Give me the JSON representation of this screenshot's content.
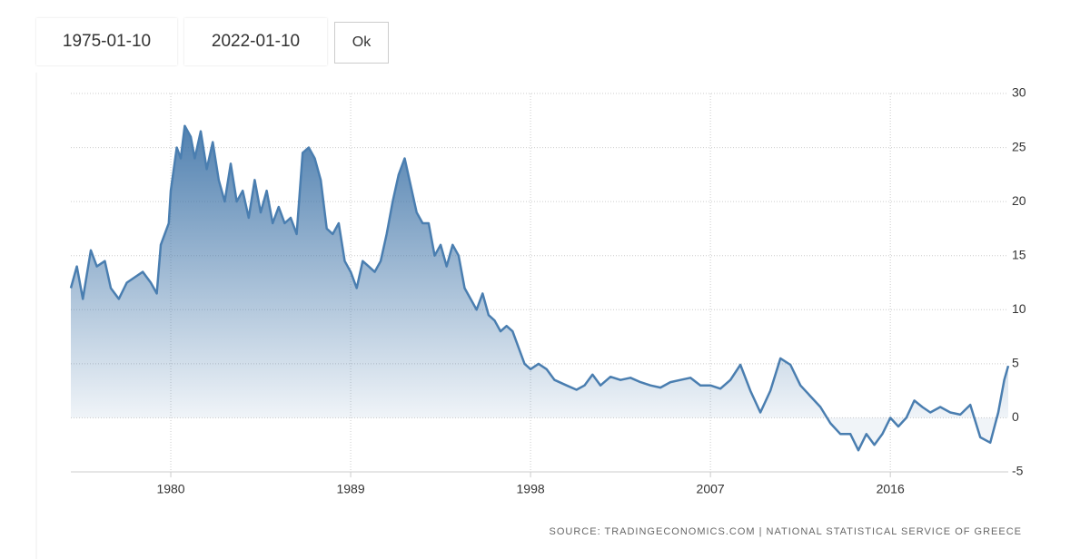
{
  "inputs": {
    "start": "1975-01-10",
    "end": "2022-01-10",
    "button": "Ok"
  },
  "chart_data": {
    "type": "area",
    "source": "SOURCE: TRADINGECONOMICS.COM | NATIONAL STATISTICAL SERVICE OF GREECE",
    "color": "#4a7eb0",
    "x": [
      1975.0,
      1975.3,
      1975.6,
      1976.0,
      1976.3,
      1976.7,
      1977.0,
      1977.4,
      1977.8,
      1978.2,
      1978.6,
      1979.0,
      1979.3,
      1979.5,
      1979.9,
      1980.0,
      1980.3,
      1980.5,
      1980.7,
      1981.0,
      1981.2,
      1981.5,
      1981.8,
      1982.1,
      1982.4,
      1982.7,
      1983.0,
      1983.3,
      1983.6,
      1983.9,
      1984.2,
      1984.5,
      1984.8,
      1985.1,
      1985.4,
      1985.7,
      1986.0,
      1986.3,
      1986.6,
      1986.9,
      1987.2,
      1987.5,
      1987.8,
      1988.1,
      1988.4,
      1988.7,
      1989.0,
      1989.3,
      1989.6,
      1989.9,
      1990.2,
      1990.5,
      1990.8,
      1991.1,
      1991.4,
      1991.7,
      1992.0,
      1992.3,
      1992.6,
      1992.9,
      1993.2,
      1993.5,
      1993.8,
      1994.1,
      1994.4,
      1994.7,
      1995.0,
      1995.3,
      1995.6,
      1995.9,
      1996.2,
      1996.5,
      1996.8,
      1997.1,
      1997.4,
      1997.7,
      1998.0,
      1998.4,
      1998.8,
      1999.2,
      1999.8,
      2000.3,
      2000.7,
      2001.1,
      2001.5,
      2002.0,
      2002.5,
      2003.0,
      2003.5,
      2004.0,
      2004.5,
      2005.0,
      2005.5,
      2006.0,
      2006.5,
      2007.0,
      2007.5,
      2008.0,
      2008.5,
      2009.0,
      2009.5,
      2010.0,
      2010.5,
      2011.0,
      2011.5,
      2012.0,
      2012.5,
      2013.0,
      2013.5,
      2014.0,
      2014.4,
      2014.8,
      2015.2,
      2015.6,
      2016.0,
      2016.4,
      2016.8,
      2017.2,
      2017.6,
      2018.0,
      2018.5,
      2019.0,
      2019.5,
      2020.0,
      2020.5,
      2021.0,
      2021.4,
      2021.7,
      2021.9
    ],
    "values": [
      12,
      14,
      11,
      15.5,
      14,
      14.5,
      12,
      11,
      12.5,
      13,
      13.5,
      12.5,
      11.5,
      16,
      18,
      21,
      25,
      24,
      27,
      26,
      24,
      26.5,
      23,
      25.5,
      22,
      20,
      23.5,
      20,
      21,
      18.5,
      22,
      19,
      21,
      18,
      19.5,
      18,
      18.5,
      17,
      24.5,
      25,
      24,
      22,
      17.5,
      17,
      18,
      14.5,
      13.5,
      12,
      14.5,
      14,
      13.5,
      14.5,
      17,
      20,
      22.5,
      24,
      21.5,
      19,
      18,
      18,
      15,
      16,
      14,
      16,
      15,
      12,
      11,
      10,
      11.5,
      9.5,
      9,
      8,
      8.5,
      8,
      6.5,
      5,
      4.5,
      5,
      4.5,
      3.5,
      3,
      2.6,
      3,
      4,
      3,
      3.8,
      3.5,
      3.7,
      3.3,
      3,
      2.8,
      3.3,
      3.5,
      3.7,
      3,
      3,
      2.7,
      3.5,
      4.9,
      2.5,
      0.5,
      2.5,
      5.5,
      4.9,
      3,
      2,
      1,
      -0.5,
      -1.5,
      -1.5,
      -3,
      -1.5,
      -2.5,
      -1.5,
      0,
      -0.8,
      0,
      1.6,
      1,
      0.5,
      1,
      0.5,
      0.3,
      1.2,
      -1.8,
      -2.3,
      0.5,
      3.5,
      4.8
    ],
    "xlim": [
      1975,
      2021.9
    ],
    "xticks": [
      1980,
      1989,
      1998,
      2007,
      2016
    ],
    "ylim": [
      -5,
      30
    ],
    "yticks": [
      -5,
      0,
      5,
      10,
      15,
      20,
      25,
      30
    ],
    "grid": true
  }
}
